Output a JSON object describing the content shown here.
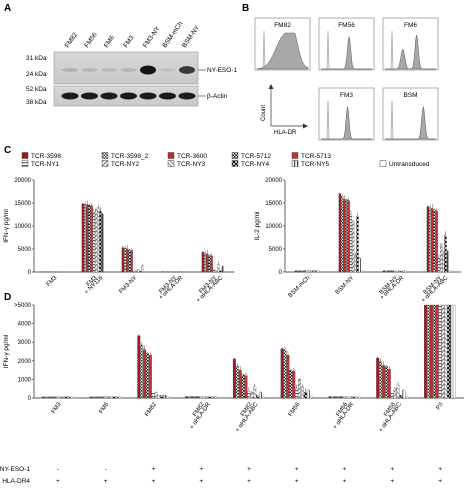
{
  "panels": {
    "a": "A",
    "b": "B",
    "c": "C",
    "d": "D"
  },
  "panel_a": {
    "lanes": [
      "FM82",
      "FM56",
      "FM6",
      "FM3",
      "FM3-NY",
      "BSM-mCh",
      "BSM-NY"
    ],
    "markers": [
      "31 kDa",
      "24 kDa",
      "52 kDa",
      "38 kDa"
    ],
    "bands": [
      "NY-ESO-1",
      "β-Actin"
    ],
    "ny_intensity": [
      0.12,
      0.1,
      0.08,
      0.1,
      0.95,
      0.05,
      0.75
    ]
  },
  "panel_b": {
    "samples": [
      "FM82",
      "FM56",
      "FM6",
      "FM3",
      "BSM"
    ],
    "axis_y": "Count",
    "axis_x": "HLA-DR"
  },
  "legend": {
    "items": [
      {
        "label": "TCR-3598",
        "color": "#9b1b22",
        "pattern": "solid"
      },
      {
        "label": "TCR-3598_2",
        "color": "#444444",
        "pattern": "checker"
      },
      {
        "label": "TCR-3600",
        "color": "#b5332f",
        "pattern": "solid"
      },
      {
        "label": "TCR-5712",
        "color": "#222222",
        "pattern": "checker"
      },
      {
        "label": "TCR-5713",
        "color": "#c8323a",
        "pattern": "solid"
      },
      {
        "label": "TCR-NY1",
        "color": "#666666",
        "pattern": "hstripe"
      },
      {
        "label": "TCR-NY2",
        "color": "#666666",
        "pattern": "dstripe"
      },
      {
        "label": "TCR-NY3",
        "color": "#888888",
        "pattern": "dstripe"
      },
      {
        "label": "TCR-NY4",
        "color": "#000000",
        "pattern": "cross"
      },
      {
        "label": "TCR-NY5",
        "color": "#444444",
        "pattern": "vstripe"
      },
      {
        "label": "Untransduced",
        "color": "#ffffff",
        "pattern": "open"
      }
    ]
  },
  "chart_data": [
    {
      "type": "bar",
      "panel": "C-left",
      "ylabel": "IFN-γ pg/ml",
      "ylim": [
        0,
        20000
      ],
      "yticks": [
        "0",
        "5000",
        "10000",
        "15000",
        "20000"
      ],
      "categories": [
        "FM3",
        "FM3 + NY116",
        "FM3-NY",
        "FM3-NY + αHLA-DR",
        "FM3-NY + αHLA-ABC"
      ],
      "series_values": [
        [
          50,
          14800,
          5300,
          100,
          4300
        ],
        [
          50,
          14700,
          5200,
          80,
          4100
        ],
        [
          50,
          14600,
          5000,
          80,
          3900
        ],
        [
          50,
          14500,
          4800,
          80,
          3600
        ],
        [
          50,
          14400,
          4700,
          80,
          3500
        ],
        [
          50,
          13000,
          200,
          50,
          600
        ],
        [
          50,
          13500,
          300,
          50,
          400
        ],
        [
          50,
          14000,
          600,
          50,
          1600
        ],
        [
          50,
          13200,
          150,
          50,
          300
        ],
        [
          50,
          12600,
          1400,
          50,
          1200
        ],
        [
          50,
          60,
          60,
          60,
          60
        ]
      ]
    },
    {
      "type": "bar",
      "panel": "C-right",
      "ylabel": "IL-2 pg/ml",
      "ylim": [
        0,
        20000
      ],
      "yticks": [
        "0",
        "5000",
        "10000",
        "15000",
        "20000"
      ],
      "categories": [
        "BSM-mCh",
        "BSM-NY",
        "BSM-NY + αHLA-DR",
        "BSM-NY + αHLA-ABC"
      ],
      "series_values": [
        [
          300,
          17000,
          300,
          14200
        ],
        [
          300,
          16500,
          300,
          14000
        ],
        [
          300,
          15800,
          300,
          13800
        ],
        [
          300,
          15700,
          300,
          13500
        ],
        [
          300,
          15500,
          300,
          13200
        ],
        [
          300,
          12500,
          200,
          3000
        ],
        [
          300,
          11000,
          200,
          6000
        ],
        [
          300,
          3500,
          300,
          4000
        ],
        [
          300,
          12000,
          200,
          8000
        ],
        [
          300,
          3000,
          300,
          4500
        ],
        [
          300,
          300,
          300,
          300
        ]
      ]
    },
    {
      "type": "bar",
      "panel": "D",
      "ylabel": "IFN-γ pg/ml",
      "ylim": [
        0,
        5000
      ],
      "yticks": [
        "0",
        "1000",
        "2000",
        "3000",
        "4000",
        ">5000"
      ],
      "categories": [
        "FM3",
        "FM6",
        "FM82",
        "FM82 + αHLA-DR",
        "FM82 + αHLA-ABC",
        "FM56",
        "FM56 + αHLA-DR",
        "FM56 + αHLA-ABC",
        "P/I"
      ],
      "series_values": [
        [
          60,
          60,
          3350,
          80,
          2100,
          2650,
          80,
          2150,
          5000
        ],
        [
          60,
          60,
          2850,
          80,
          1700,
          2600,
          80,
          1950,
          5000
        ],
        [
          60,
          60,
          2600,
          80,
          1500,
          2300,
          80,
          1750,
          5000
        ],
        [
          60,
          60,
          2400,
          80,
          1250,
          1500,
          80,
          1700,
          5000
        ],
        [
          60,
          60,
          2300,
          80,
          1200,
          1450,
          80,
          1550,
          5000
        ],
        [
          60,
          60,
          250,
          60,
          350,
          500,
          60,
          250,
          5000
        ],
        [
          60,
          60,
          280,
          60,
          300,
          1000,
          60,
          500,
          5000
        ],
        [
          60,
          60,
          120,
          60,
          600,
          600,
          60,
          700,
          5000
        ],
        [
          60,
          60,
          150,
          60,
          150,
          300,
          60,
          150,
          5000
        ],
        [
          60,
          60,
          150,
          60,
          300,
          400,
          60,
          400,
          5000
        ],
        [
          60,
          60,
          80,
          60,
          80,
          100,
          60,
          80,
          5000
        ]
      ],
      "rows": [
        {
          "label": "NY-ESO-1",
          "values": [
            "-",
            "-",
            "+",
            "+",
            "+",
            "+",
            "+",
            "+",
            "+"
          ]
        },
        {
          "label": "HLA-DR4",
          "values": [
            "+",
            "+",
            "+",
            "+",
            "+",
            "+",
            "+",
            "+",
            "+"
          ]
        }
      ]
    }
  ]
}
